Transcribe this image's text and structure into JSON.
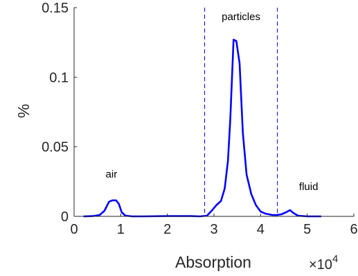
{
  "chart_data": {
    "type": "line",
    "xlabel": "Absorption",
    "ylabel": "%",
    "x_exponent_label": "×10",
    "x_exponent_power": "4",
    "xlim": [
      0,
      60000
    ],
    "ylim": [
      0,
      0.15
    ],
    "x_ticks": [
      0,
      10000,
      20000,
      30000,
      40000,
      50000,
      60000
    ],
    "x_tick_labels": [
      "0",
      "1",
      "2",
      "3",
      "4",
      "5",
      "6"
    ],
    "y_ticks": [
      0,
      0.05,
      0.1,
      0.15
    ],
    "y_tick_labels": [
      "0",
      "0.05",
      "0.1",
      "0.15"
    ],
    "grid": false,
    "series": [
      {
        "color": "#0000ff",
        "x": [
          2000,
          4000,
          5500,
          6500,
          7500,
          8200,
          9000,
          9600,
          10200,
          11000,
          12500,
          15000,
          20000,
          25000,
          27000,
          28500,
          29500,
          30500,
          31500,
          32300,
          33000,
          33500,
          34200,
          34800,
          35500,
          36200,
          37000,
          38000,
          39000,
          40000,
          41000,
          42500,
          43500,
          44500,
          45500,
          46300,
          47000,
          48000,
          50000,
          53000
        ],
        "y": [
          0,
          0.0002,
          0.001,
          0.004,
          0.0105,
          0.0115,
          0.0115,
          0.009,
          0.003,
          0.0005,
          0,
          0,
          0.0002,
          0.0002,
          0,
          0.0005,
          0.004,
          0.008,
          0.011,
          0.02,
          0.04,
          0.07,
          0.127,
          0.126,
          0.11,
          0.06,
          0.03,
          0.016,
          0.008,
          0.0035,
          0.002,
          0.001,
          0.001,
          0.0015,
          0.003,
          0.0045,
          0.0025,
          0.0005,
          0,
          0
        ]
      }
    ],
    "dividers": [
      {
        "x": 28000,
        "color": "#0000ff",
        "style": "dashed"
      },
      {
        "x": 43600,
        "color": "#0000ff",
        "style": "dashed"
      }
    ],
    "annotations": [
      {
        "text": "air",
        "x": 8000,
        "y": 0.028
      },
      {
        "text": "particles",
        "x": 35800,
        "y": 0.141
      },
      {
        "text": "fluid",
        "x": 50300,
        "y": 0.019
      }
    ]
  }
}
